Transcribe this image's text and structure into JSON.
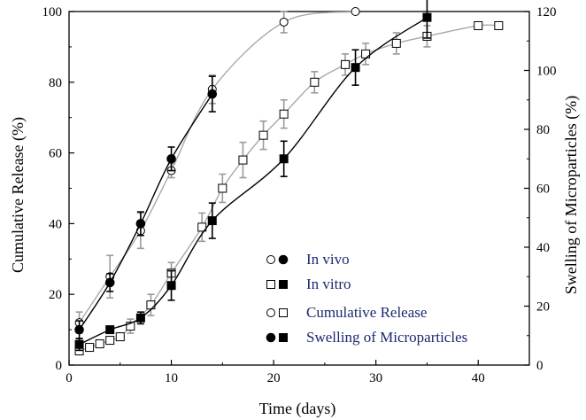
{
  "chart_data": {
    "type": "line",
    "title": "",
    "xlabel": "Time (days)",
    "ylabel_left": "Cumulative Release (%)",
    "ylabel_right": "Swelling of Microparticles (%)",
    "xlim": [
      0,
      45
    ],
    "ylim_left": [
      0,
      100
    ],
    "ylim_right": [
      0,
      120
    ],
    "x_ticks": [
      0,
      10,
      20,
      30,
      40
    ],
    "y_ticks_left": [
      0,
      20,
      40,
      60,
      80,
      100
    ],
    "y_ticks_right": [
      0,
      20,
      40,
      60,
      80,
      100,
      120
    ],
    "grid": false,
    "legend": {
      "placement": "bottom-right",
      "entries": [
        {
          "markers": [
            "open-circle",
            "filled-circle"
          ],
          "label": "In vivo"
        },
        {
          "markers": [
            "open-square",
            "filled-square"
          ],
          "label": "In vitro"
        },
        {
          "markers": [
            "open-circle",
            "open-square"
          ],
          "label": "Cumulative Release"
        },
        {
          "markers": [
            "filled-circle",
            "filled-square"
          ],
          "label": "Swelling of Microparticles"
        }
      ]
    },
    "series": [
      {
        "name": "In vivo",
        "measure": "Cumulative Release",
        "axis": "left",
        "marker": "open-circle",
        "line_color": "#a9a9a9",
        "x": [
          1,
          4,
          7,
          10,
          14,
          21,
          28
        ],
        "y": [
          12,
          25,
          38,
          55,
          78,
          97,
          100
        ],
        "err": [
          3,
          6,
          5,
          2,
          4,
          3,
          0
        ]
      },
      {
        "name": "In vivo",
        "measure": "Swelling of Microparticles",
        "axis": "right",
        "marker": "filled-circle",
        "line_color": "#000000",
        "x": [
          1,
          4,
          7,
          10,
          14
        ],
        "y": [
          12,
          28,
          48,
          70,
          92
        ],
        "err": [
          3,
          3,
          4,
          4,
          6
        ]
      },
      {
        "name": "In vitro",
        "measure": "Cumulative Release",
        "axis": "left",
        "marker": "open-square",
        "line_color": "#a9a9a9",
        "x": [
          1,
          2,
          3,
          4,
          5,
          6,
          8,
          10,
          13,
          15,
          17,
          19,
          21,
          24,
          27,
          29,
          32,
          35,
          40,
          42
        ],
        "y": [
          4,
          5,
          6,
          7,
          8,
          11,
          17,
          26,
          39,
          50,
          58,
          65,
          71,
          80,
          85,
          88,
          91,
          93,
          96,
          96
        ],
        "err": [
          1,
          1,
          1,
          1,
          1,
          2,
          3,
          3,
          4,
          4,
          5,
          4,
          4,
          3,
          3,
          3,
          3,
          3,
          1,
          1
        ]
      },
      {
        "name": "In vitro",
        "measure": "Swelling of Microparticles",
        "axis": "right",
        "marker": "filled-square",
        "line_color": "#000000",
        "x": [
          1,
          4,
          7,
          10,
          14,
          21,
          28,
          35
        ],
        "y": [
          7,
          12,
          16,
          27,
          49,
          70,
          101,
          118
        ],
        "err": [
          2,
          1,
          2,
          5,
          6,
          6,
          6,
          7
        ]
      }
    ]
  }
}
